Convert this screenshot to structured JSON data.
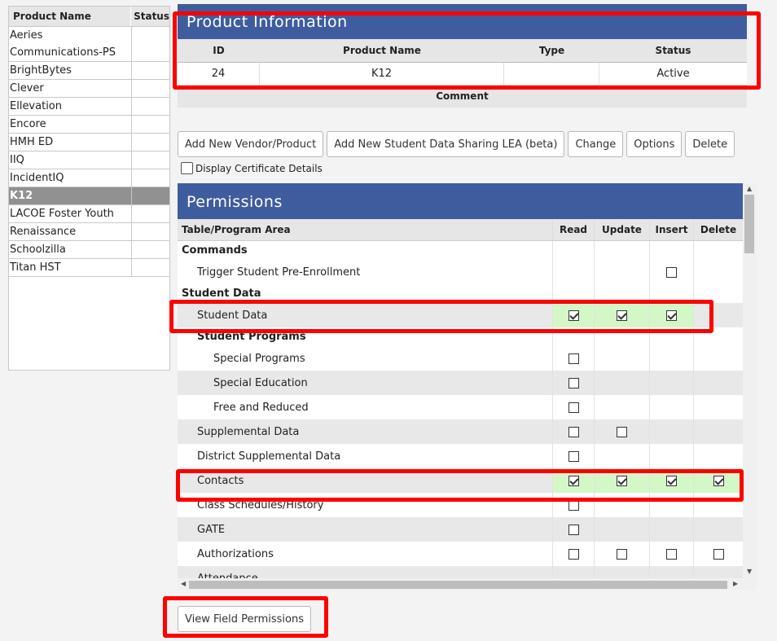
{
  "products_list": {
    "headers": {
      "name": "Product Name",
      "status": "Status"
    },
    "items": [
      {
        "name": "Aeries Communications-PS",
        "status": ""
      },
      {
        "name": "BrightBytes",
        "status": ""
      },
      {
        "name": "Clever",
        "status": ""
      },
      {
        "name": "Ellevation",
        "status": ""
      },
      {
        "name": "Encore",
        "status": ""
      },
      {
        "name": "HMH ED",
        "status": ""
      },
      {
        "name": "IIQ",
        "status": ""
      },
      {
        "name": "IncidentIQ",
        "status": ""
      },
      {
        "name": "K12",
        "status": "",
        "selected": true
      },
      {
        "name": "LACOE Foster Youth",
        "status": ""
      },
      {
        "name": "Renaissance",
        "status": ""
      },
      {
        "name": "Schoolzilla",
        "status": ""
      },
      {
        "name": "Titan HST",
        "status": ""
      }
    ]
  },
  "product_info": {
    "title": "Product Information",
    "headers": {
      "id": "ID",
      "name": "Product Name",
      "type": "Type",
      "status": "Status"
    },
    "row": {
      "id": "24",
      "name": "K12",
      "type": "",
      "status": "Active"
    },
    "comment_label": "Comment"
  },
  "buttons": {
    "add_vendor": "Add New Vendor/Product",
    "add_lea": "Add New Student Data Sharing LEA (beta)",
    "change": "Change",
    "options": "Options",
    "delete": "Delete",
    "view_field_permissions": "View Field Permissions"
  },
  "display_cert_label": "Display Certificate Details",
  "permissions": {
    "title": "Permissions",
    "headers": {
      "area": "Table/Program Area",
      "read": "Read",
      "update": "Update",
      "insert": "Insert",
      "delete": "Delete"
    },
    "rows": [
      {
        "label": "Commands",
        "level": 0,
        "header": true
      },
      {
        "label": "Trigger Student Pre-Enrollment",
        "level": 1,
        "insert": false
      },
      {
        "label": "Student Data",
        "level": 0,
        "header": true
      },
      {
        "label": "Student Data",
        "level": 1,
        "read": true,
        "update": true,
        "insert": true,
        "highlight": true
      },
      {
        "label": "Student Programs",
        "level": 1,
        "header": true
      },
      {
        "label": "Special Programs",
        "level": 2,
        "read": false
      },
      {
        "label": "Special Education",
        "level": 2,
        "read": false
      },
      {
        "label": "Free and Reduced",
        "level": 2,
        "read": false
      },
      {
        "label": "Supplemental Data",
        "level": 1,
        "read": false,
        "update": false
      },
      {
        "label": "District Supplemental Data",
        "level": 1,
        "read": false
      },
      {
        "label": "Contacts",
        "level": 1,
        "read": true,
        "update": true,
        "insert": true,
        "delete": true,
        "highlight": true
      },
      {
        "label": "Class Schedules/History",
        "level": 1,
        "read": false
      },
      {
        "label": "GATE",
        "level": 1,
        "read": false
      },
      {
        "label": "Authorizations",
        "level": 1,
        "read": false,
        "update": false,
        "insert": false,
        "delete": false
      },
      {
        "label": "Attendance",
        "level": 1,
        "partial": true
      }
    ]
  },
  "colors": {
    "title_band": "#3f5d9e",
    "highlight_green": "#d4f7c8",
    "annotation_red": "#ff0000",
    "selected_row": "#919191"
  }
}
